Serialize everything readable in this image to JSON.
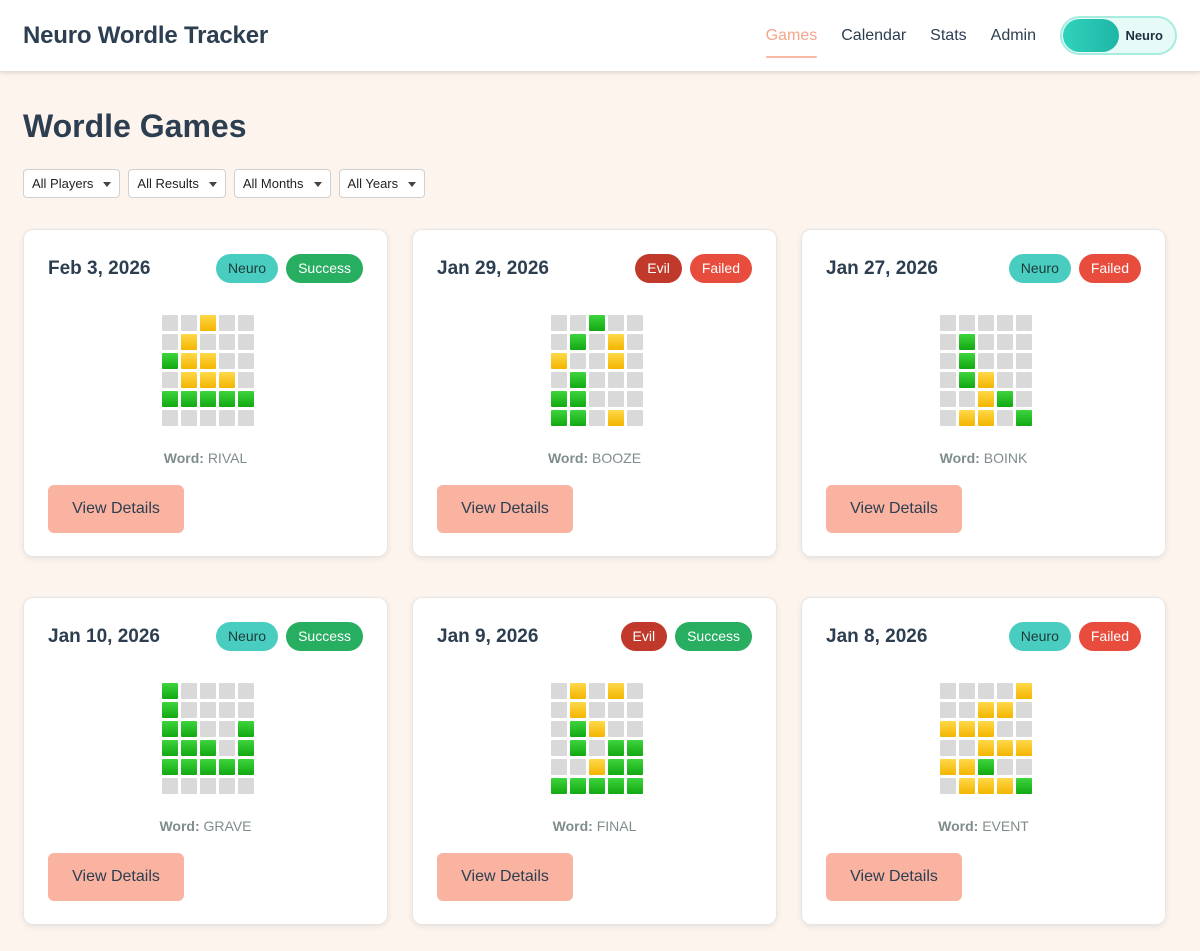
{
  "app_title": "Neuro Wordle Tracker",
  "nav": [
    {
      "label": "Games",
      "active": true
    },
    {
      "label": "Calendar",
      "active": false
    },
    {
      "label": "Stats",
      "active": false
    },
    {
      "label": "Admin",
      "active": false
    }
  ],
  "toggle": {
    "label": "Neuro",
    "accent": "#2fd3bd"
  },
  "page_title": "Wordle Games",
  "filters": [
    "All Players",
    "All Results",
    "All Months",
    "All Years"
  ],
  "word_label": "Word:",
  "view_label": "View Details",
  "colors": {
    "green": "#21b621",
    "yellow": "#f7c600",
    "empty": "#d9d9d9",
    "button": "#f9b3a0",
    "background": "#fdf4ee"
  },
  "games": [
    {
      "date": "Feb 3, 2026",
      "player": "Neuro",
      "result": "Success",
      "word": "RIVAL",
      "rows": [
        "xxyxx",
        "xyxxx",
        "gyyxx",
        "xyyyx",
        "ggggg",
        "xxxxx"
      ]
    },
    {
      "date": "Jan 29, 2026",
      "player": "Evil",
      "result": "Failed",
      "word": "BOOZE",
      "rows": [
        "xxgxx",
        "xgxyx",
        "yxxyx",
        "xgxxx",
        "ggxxx",
        "ggxyx"
      ]
    },
    {
      "date": "Jan 27, 2026",
      "player": "Neuro",
      "result": "Failed",
      "word": "BOINK",
      "rows": [
        "xxxxx",
        "xgxxx",
        "xgxxx",
        "xgyxx",
        "xxygx",
        "xyyxg"
      ]
    },
    {
      "date": "Jan 10, 2026",
      "player": "Neuro",
      "result": "Success",
      "word": "GRAVE",
      "rows": [
        "gxxxx",
        "gxxxx",
        "ggxxg",
        "gggxg",
        "ggggg",
        "xxxxx"
      ]
    },
    {
      "date": "Jan 9, 2026",
      "player": "Evil",
      "result": "Success",
      "word": "FINAL",
      "rows": [
        "xyxyx",
        "xyxxx",
        "xgyxx",
        "xgxgg",
        "xxygg",
        "ggggg"
      ]
    },
    {
      "date": "Jan 8, 2026",
      "player": "Neuro",
      "result": "Failed",
      "word": "EVENT",
      "rows": [
        "xxxxy",
        "xxyyx",
        "yyyxx",
        "xxyyy",
        "yygxx",
        "xyyyg"
      ]
    }
  ]
}
